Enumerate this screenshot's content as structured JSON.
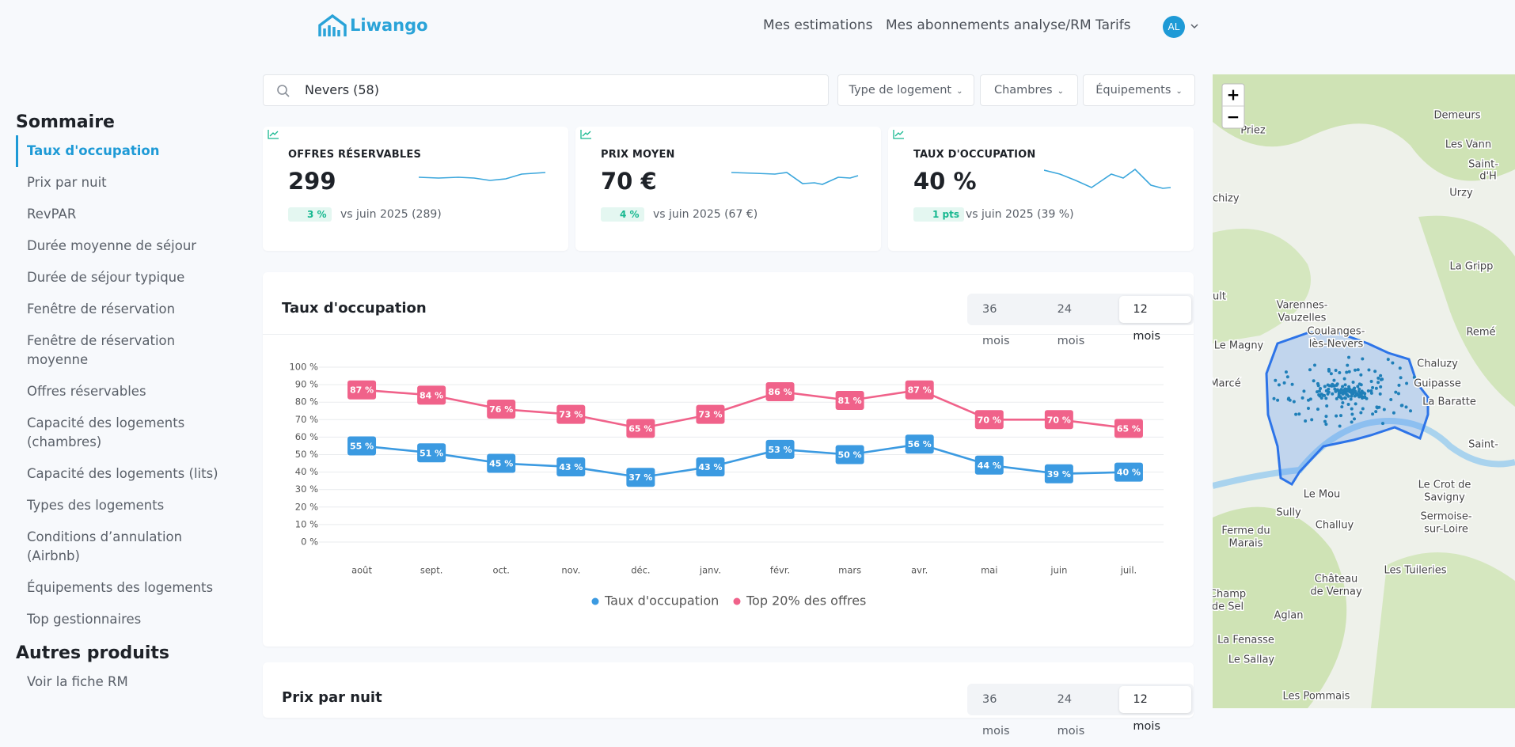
{
  "header": {
    "logo": "Liwango",
    "nav": [
      "Mes estimations",
      "Mes abonnements analyse/RM",
      "Tarifs"
    ],
    "avatar": "AL"
  },
  "sidebar": {
    "title": "Sommaire",
    "items": [
      "Taux d'occupation",
      "Prix par nuit",
      "RevPAR",
      "Durée moyenne de séjour",
      "Durée de séjour typique",
      "Fenêtre de réservation",
      "Fenêtre de réservation moyenne",
      "Offres réservables",
      "Capacité des logements (chambres)",
      "Capacité des logements (lits)",
      "Types des logements",
      "Conditions d’annulation (Airbnb)",
      "Équipements des logements",
      "Top gestionnaires"
    ],
    "other_title": "Autres produits",
    "other_items": [
      "Voir la fiche RM"
    ]
  },
  "search": {
    "value": "Nevers (58)"
  },
  "filters": [
    "Type de logement",
    "Chambres",
    "Équipements"
  ],
  "kpis": [
    {
      "label": "OFFRES RÉSERVABLES",
      "value": "299",
      "change": "3 %",
      "comparison": "vs juin 2025 (289)"
    },
    {
      "label": "PRIX MOYEN",
      "value": "70 €",
      "change": "4 %",
      "comparison": "vs juin 2025 (67 €)"
    },
    {
      "label": "TAUX D'OCCUPATION",
      "value": "40 %",
      "change": "1 pts",
      "comparison": "vs juin 2025 (39 %)"
    }
  ],
  "chart_data": {
    "type": "line",
    "title": "Taux d'occupation",
    "tabs": [
      "36 mois",
      "24 mois",
      "12 mois"
    ],
    "categories": [
      "août",
      "sept.",
      "oct.",
      "nov.",
      "déc.",
      "janv.",
      "févr.",
      "mars",
      "avr.",
      "mai",
      "juin",
      "juil."
    ],
    "series": [
      {
        "name": "Taux d'occupation",
        "color": "#3b9ae1",
        "values": [
          55,
          51,
          45,
          43,
          37,
          43,
          53,
          50,
          56,
          44,
          39,
          40
        ],
        "value_labels": [
          "55 %",
          "51 %",
          "45 %",
          "43 %",
          "37 %",
          "43 %",
          "53 %",
          "50 %",
          "56 %",
          "44 %",
          "39 %",
          "40 %"
        ]
      },
      {
        "name": "Top 20% des offres",
        "color": "#f0628a",
        "values": [
          87,
          84,
          76,
          73,
          65,
          73,
          86,
          81,
          87,
          70,
          70,
          65
        ],
        "value_labels": [
          "87 %",
          "84 %",
          "76 %",
          "73 %",
          "65 %",
          "73 %",
          "86 %",
          "81 %",
          "87 %",
          "70 %",
          "70 %",
          "65 %"
        ]
      }
    ],
    "ylim": [
      0,
      100
    ],
    "yticks": [
      {
        "value": 0,
        "label": "0 %"
      },
      {
        "value": 10,
        "label": "10 %"
      },
      {
        "value": 20,
        "label": "20 %"
      },
      {
        "value": 30,
        "label": "30 %"
      },
      {
        "value": 40,
        "label": "40 %"
      },
      {
        "value": 50,
        "label": "50 %"
      },
      {
        "value": 60,
        "label": "60 %"
      },
      {
        "value": 70,
        "label": "70 %"
      },
      {
        "value": 80,
        "label": "80 %"
      },
      {
        "value": 90,
        "label": "90 %"
      },
      {
        "value": 100,
        "label": "100 %"
      }
    ],
    "grid": true,
    "legend": "bottom"
  },
  "next_section": {
    "title": "Prix par nuit",
    "tabs": [
      "36 mois",
      "24 mois",
      "12 mois"
    ]
  },
  "map": {
    "zoom_in": "+",
    "zoom_out": "−",
    "labels": [
      "Priez",
      "Demeurs",
      "Les Vann",
      "Saint-",
      "d'H",
      "Urzy",
      "chizy",
      "La Gripp",
      "ult",
      "Varennes-",
      "Vauzelles",
      "Coulanges-",
      "lès-Nevers",
      "Remé",
      "Le Magny",
      "Chaluzy",
      "Marcé",
      "Guipasse",
      "La Baratte",
      "Saint-",
      "Le Mou",
      "Le Crot de",
      "Savigny",
      "Sully",
      "Challuy",
      "Sermoise-",
      "sur-Loire",
      "Ferme du",
      "Marais",
      "Château",
      "de Vernay",
      "Les Tuileries",
      "Champ",
      "de Sel",
      "Aglan",
      "La Fenasse",
      "Le Sallay",
      "Les Pommais"
    ]
  }
}
